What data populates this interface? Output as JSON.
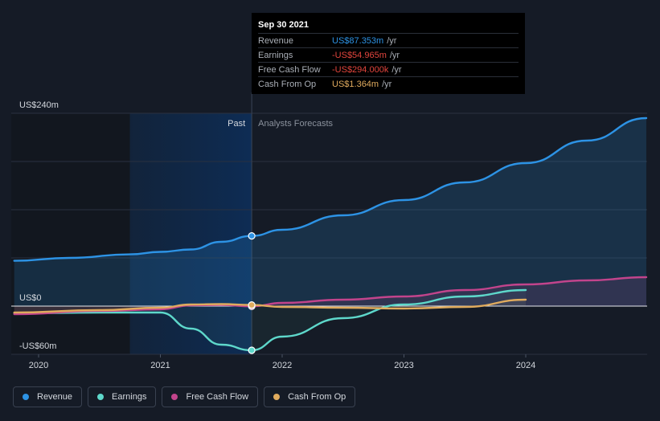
{
  "chart_data": {
    "type": "line",
    "ylim": [
      -60,
      240
    ],
    "y_tick_labels": [
      {
        "value": 240,
        "label": "US$240m"
      },
      {
        "value": 0,
        "label": "US$0"
      },
      {
        "value": -60,
        "label": "-US$60m"
      }
    ],
    "x_tick_labels": [
      {
        "value": 2020.0,
        "label": "2020"
      },
      {
        "value": 2021.0,
        "label": "2021"
      },
      {
        "value": 2022.0,
        "label": "2022"
      },
      {
        "value": 2023.0,
        "label": "2023"
      },
      {
        "value": 2024.0,
        "label": "2024"
      }
    ],
    "xlim": [
      2019.8,
      2024.99
    ],
    "past_label": "Past",
    "forecast_label": "Analysts Forecasts",
    "divider_x": 2021.75,
    "shade_start_x": 2020.75,
    "series": [
      {
        "name": "Revenue",
        "color": "#2d93e5",
        "x": [
          2019.8,
          2020.25,
          2020.75,
          2021.0,
          2021.25,
          2021.5,
          2021.75,
          2022.0,
          2022.5,
          2023.0,
          2023.5,
          2024.0,
          2024.5,
          2024.99
        ],
        "y": [
          56.4,
          60,
          64.4,
          67.5,
          70.5,
          80,
          87.353,
          95,
          113,
          132,
          154,
          178,
          206,
          234
        ]
      },
      {
        "name": "Earnings",
        "color": "#5ed8cb",
        "x": [
          2019.8,
          2020.5,
          2021.0,
          2021.25,
          2021.5,
          2021.75,
          2022.0,
          2022.5,
          2023.0,
          2023.5,
          2024.0
        ],
        "y": [
          -9,
          -8,
          -8,
          -28,
          -48,
          -54.965,
          -38,
          -15,
          2,
          12,
          20
        ]
      },
      {
        "name": "Free Cash Flow",
        "color": "#c2448c",
        "x": [
          2019.8,
          2020.5,
          2021.0,
          2021.25,
          2021.5,
          2021.75,
          2022.0,
          2022.5,
          2023.0,
          2023.5,
          2024.0,
          2024.5,
          2024.99
        ],
        "y": [
          -10,
          -6,
          -4,
          1,
          1.5,
          -0.294,
          4,
          8,
          12,
          20,
          27,
          32,
          36
        ]
      },
      {
        "name": "Cash From Op",
        "color": "#e0ab5e",
        "x": [
          2019.8,
          2020.5,
          2021.0,
          2021.25,
          2021.5,
          2021.75,
          2022.0,
          2022.5,
          2023.0,
          2023.5,
          2024.0
        ],
        "y": [
          -8,
          -5,
          -2,
          2,
          2.5,
          1.364,
          -1,
          -2,
          -3,
          -1,
          8
        ]
      }
    ],
    "tooltip": {
      "date": "Sep 30 2021",
      "rows": [
        {
          "label": "Revenue",
          "value": "US$87.353m",
          "unit": "/yr",
          "color": "#2d93e5"
        },
        {
          "label": "Earnings",
          "value": "-US$54.965m",
          "unit": "/yr",
          "color": "#e2453d"
        },
        {
          "label": "Free Cash Flow",
          "value": "-US$294.000k",
          "unit": "/yr",
          "color": "#e2453d"
        },
        {
          "label": "Cash From Op",
          "value": "US$1.364m",
          "unit": "/yr",
          "color": "#e0ab5e"
        }
      ]
    }
  },
  "legend": [
    {
      "label": "Revenue",
      "color": "#2d93e5"
    },
    {
      "label": "Earnings",
      "color": "#5ed8cb"
    },
    {
      "label": "Free Cash Flow",
      "color": "#c2448c"
    },
    {
      "label": "Cash From Op",
      "color": "#e0ab5e"
    }
  ]
}
